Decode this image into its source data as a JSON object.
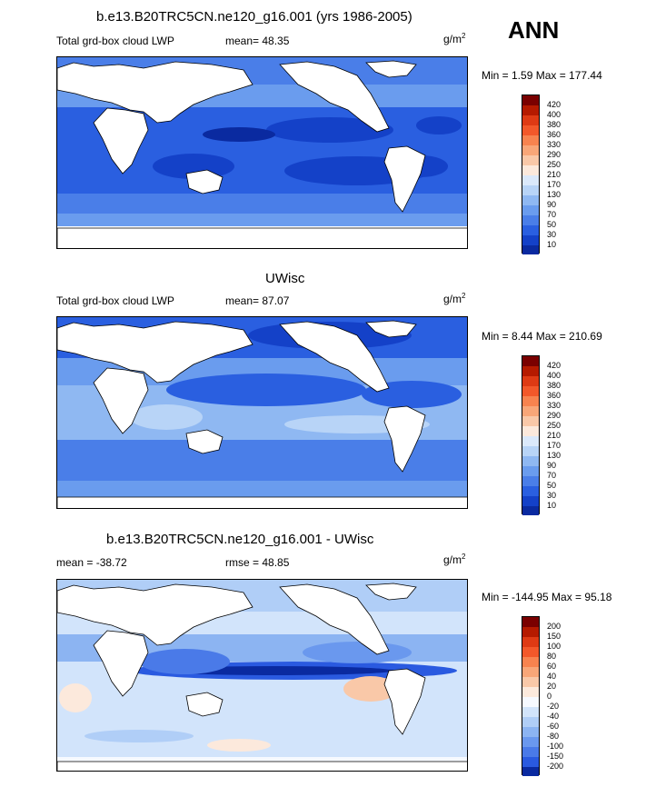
{
  "header": {
    "season": "ANN"
  },
  "panels": [
    {
      "title": "b.e13.B20TRC5CN.ne120_g16.001 (yrs 1986-2005)",
      "left_label": "Total grd-box cloud LWP",
      "center_label": "mean=  48.35",
      "units_base": "g/m",
      "units_exp": "2",
      "minmax": "Min =   1.59 Max = 177.44",
      "colorbar_levels": [
        "420",
        "400",
        "380",
        "360",
        "330",
        "290",
        "250",
        "210",
        "170",
        "130",
        "90",
        "70",
        "50",
        "30",
        "10"
      ]
    },
    {
      "title": "UWisc",
      "left_label": "Total grd-box cloud LWP",
      "center_label": "mean=  87.07",
      "units_base": "g/m",
      "units_exp": "2",
      "minmax": "Min =   8.44 Max = 210.69",
      "colorbar_levels": [
        "420",
        "400",
        "380",
        "360",
        "330",
        "290",
        "250",
        "210",
        "170",
        "130",
        "90",
        "70",
        "50",
        "30",
        "10"
      ]
    },
    {
      "title": "b.e13.B20TRC5CN.ne120_g16.001 - UWisc",
      "left_label": "mean = -38.72",
      "center_label": "rmse =  48.85",
      "units_base": "g/m",
      "units_exp": "2",
      "minmax": "Min = -144.95 Max =  95.18",
      "colorbar_levels": [
        "200",
        "150",
        "100",
        "80",
        "60",
        "40",
        "20",
        "0",
        "-20",
        "-40",
        "-60",
        "-80",
        "-100",
        "-150",
        "-200"
      ]
    }
  ],
  "colors": {
    "abs_scale": [
      "#7a0000",
      "#b51a00",
      "#de3a14",
      "#f2582a",
      "#f7834f",
      "#f8a678",
      "#f9c8a8",
      "#fce9dc",
      "#dbe9fb",
      "#b8d4f7",
      "#8fb8f2",
      "#6a9cee",
      "#4a7ee8",
      "#2a5fe0",
      "#1441c8",
      "#0a2aa0"
    ],
    "diff_scale": [
      "#7a0000",
      "#b51a00",
      "#de3a14",
      "#f2582a",
      "#f7834f",
      "#f8a678",
      "#f9c8a8",
      "#fce9dc",
      "#f6f9ff",
      "#d2e4fb",
      "#b0cef7",
      "#8cb4f2",
      "#6a98ee",
      "#4a7ae8",
      "#2a5ae0",
      "#0a2aa0"
    ]
  }
}
